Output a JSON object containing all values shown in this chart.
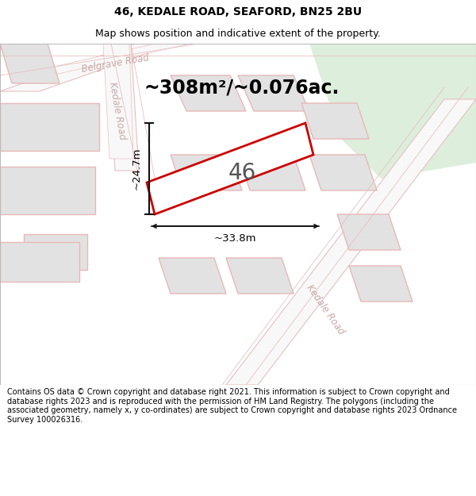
{
  "title_line1": "46, KEDALE ROAD, SEAFORD, BN25 2BU",
  "title_line2": "Map shows position and indicative extent of the property.",
  "area_text": "~308m²/~0.076ac.",
  "number_label": "46",
  "dim_width": "~33.8m",
  "dim_height": "~24.7m",
  "footer_text": "Contains OS data © Crown copyright and database right 2021. This information is subject to Crown copyright and database rights 2023 and is reproduced with the permission of HM Land Registry. The polygons (including the associated geometry, namely x, y co-ordinates) are subject to Crown copyright and database rights 2023 Ordnance Survey 100026316.",
  "map_bg": "#ffffff",
  "green_area_color": "#ddeedd",
  "block_face": "#e2e2e2",
  "block_edge": "#e8b8b8",
  "road_face": "#f8f8f8",
  "road_edge": "#e8c0c0",
  "highlight_color": "#cc0000",
  "road_label_color": "#c8a8a8",
  "dim_line_color": "#111111",
  "title_fontsize": 10,
  "subtitle_fontsize": 9,
  "area_fontsize": 17,
  "number_fontsize": 20,
  "road_label_fontsize": 8.5,
  "dim_fontsize": 9.5,
  "footer_fontsize": 7.0
}
